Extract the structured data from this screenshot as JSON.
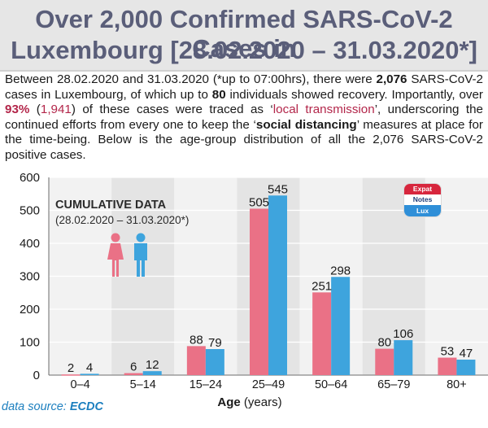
{
  "header": {
    "title_line1": "Over 2,000 Confirmed SARS-CoV-2 Cases in",
    "title_line2": "Luxembourg [28.02.2020 – 31.03.2020*]"
  },
  "intro": {
    "p1": "Between 28.02.2020 and 31.03.2020 (*up to 07:00hrs), there were ",
    "n_cases": "2,076",
    "p2": " SARS-CoV-2 cases in Luxembourg, of which up to ",
    "n_recovered": "80",
    "p3": " individuals showed recovery. Importantly, over ",
    "pct_local": "93%",
    "p4": " (",
    "n_local": "1,941",
    "p5": ") of these cases were traced as ‘",
    "local_transmission": "local transmission",
    "p6": "’, underscoring the continued efforts from every one to keep the ‘",
    "social_distancing": "social distancing",
    "p7": "’ measures at place for the time-being. Below is the age-group distribution of all the 2,076 SARS-CoV-2 positive cases."
  },
  "colors": {
    "female": "#ea7186",
    "male": "#3ea4dd",
    "band_light": "#f2f2f2",
    "band_dark": "#e4e4e4",
    "title": "#5a5e79",
    "accent_red": "#b3264a",
    "accent_blue": "#2d7fbd"
  },
  "chart_data": {
    "type": "bar",
    "annotation_title": "CUMULATIVE DATA",
    "annotation_subtitle": "(28.02.2020 – 31.03.2020*)",
    "categories": [
      "0–4",
      "5–14",
      "15–24",
      "25–49",
      "50–64",
      "65–79",
      "80+"
    ],
    "series": [
      {
        "icon": "female-icon",
        "color": "#ea7186",
        "values": [
          2,
          6,
          88,
          505,
          251,
          80,
          53
        ]
      },
      {
        "icon": "male-icon",
        "color": "#3ea4dd",
        "values": [
          4,
          12,
          79,
          545,
          298,
          106,
          47
        ]
      }
    ],
    "xlabel_bold": "Age",
    "xlabel_rest": " (years)",
    "ylim": [
      0,
      600
    ],
    "yticks": [
      0,
      100,
      200,
      300,
      400,
      500,
      600
    ],
    "grid": true
  },
  "badge": {
    "line1": "Expat",
    "line2": "Notes",
    "line3": "Lux"
  },
  "footer": {
    "source_prefix": "data source: ",
    "source_name": "ECDC"
  }
}
